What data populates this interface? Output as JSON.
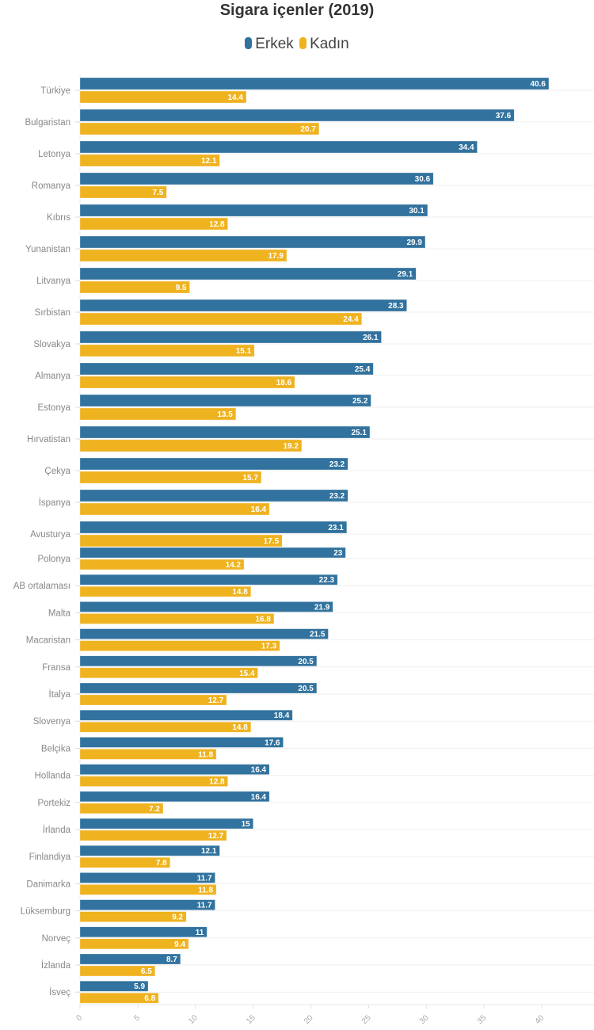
{
  "chart_data": {
    "type": "bar",
    "orientation": "horizontal",
    "title": "Sigara içenler (2019)",
    "xlabel": "",
    "ylabel": "",
    "xlim": [
      0,
      44
    ],
    "x_ticks": [
      0,
      5,
      10,
      15,
      20,
      25,
      30,
      35,
      40
    ],
    "grid": true,
    "legend_position": "top-center",
    "categories": [
      "Türkiye",
      "Bulgaristan",
      "Letonya",
      "Romanya",
      "Kıbrıs",
      "Yunanistan",
      "Litvanya",
      "Sırbistan",
      "Slovakya",
      "Almanya",
      "Estonya",
      "Hırvatistan",
      "Çekya",
      "İspanya",
      "Avusturya",
      "Polonya",
      "AB ortalaması",
      "Malta",
      "Macaristan",
      "Fransa",
      "İtalya",
      "Slovenya",
      "Belçika",
      "Hollanda",
      "Portekiz",
      "İrlanda",
      "Finlandiya",
      "Danimarka",
      "Lüksemburg",
      "Norveç",
      "İzlanda",
      "İsveç"
    ],
    "series": [
      {
        "name": "Erkek",
        "color": "#31729e",
        "values": [
          40.6,
          37.6,
          34.4,
          30.6,
          30.1,
          29.9,
          29.1,
          28.3,
          26.1,
          25.4,
          25.2,
          25.1,
          23.2,
          23.2,
          23.1,
          23,
          22.3,
          21.9,
          21.5,
          20.5,
          20.5,
          18.4,
          17.6,
          16.4,
          16.4,
          15,
          12.1,
          11.7,
          11.7,
          11,
          8.7,
          5.9
        ]
      },
      {
        "name": "Kadın",
        "color": "#efb320",
        "values": [
          14.4,
          20.7,
          12.1,
          7.5,
          12.8,
          17.9,
          9.5,
          24.4,
          15.1,
          18.6,
          13.5,
          19.2,
          15.7,
          16.4,
          17.5,
          14.2,
          14.8,
          16.8,
          17.3,
          15.4,
          12.7,
          14.8,
          11.8,
          12.8,
          7.2,
          12.7,
          7.8,
          11.8,
          9.2,
          9.4,
          6.5,
          6.8
        ]
      }
    ]
  }
}
